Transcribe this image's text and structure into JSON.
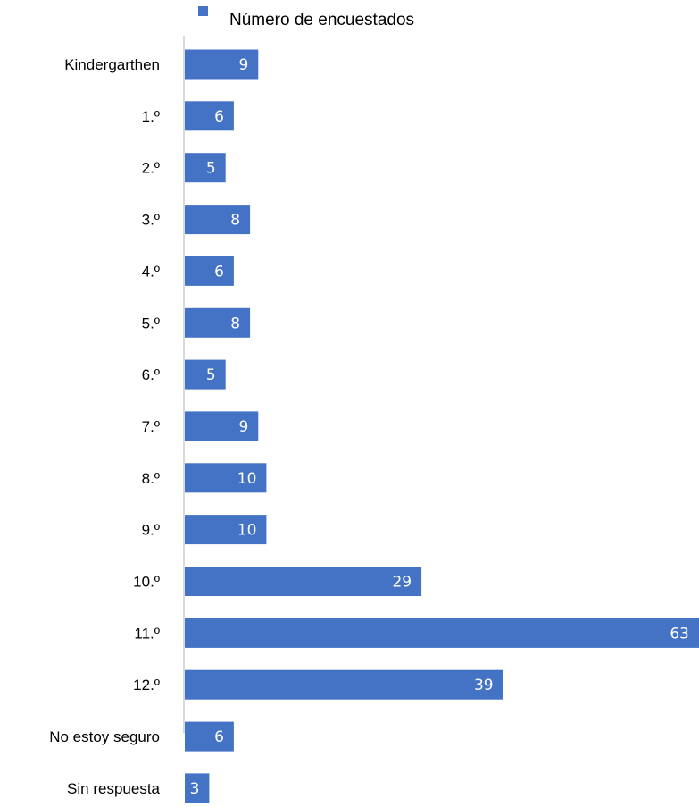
{
  "chart_data": {
    "type": "bar",
    "orientation": "horizontal",
    "categories": [
      "Kindergarthen",
      "1.º",
      "2.º",
      "3.º",
      "4.º",
      "5.º",
      "6.º",
      "7.º",
      "8.º",
      "9.º",
      "10.º",
      "11.º",
      "12.º",
      "No estoy seguro",
      "Sin respuesta"
    ],
    "series": [
      {
        "name": "Número de encuestados",
        "values": [
          9,
          6,
          5,
          8,
          6,
          8,
          5,
          9,
          10,
          10,
          29,
          63,
          39,
          6,
          3
        ],
        "color": "#4472c4"
      }
    ],
    "title": "",
    "xlabel": "",
    "ylabel": "",
    "xlim": [
      0,
      63
    ],
    "grid": false,
    "data_labels": true,
    "legend": {
      "position": "top"
    },
    "colors": {
      "bar": "#4472c4",
      "axis": "#d9d9d9",
      "label": "#ffffff",
      "text": "#000000"
    }
  }
}
